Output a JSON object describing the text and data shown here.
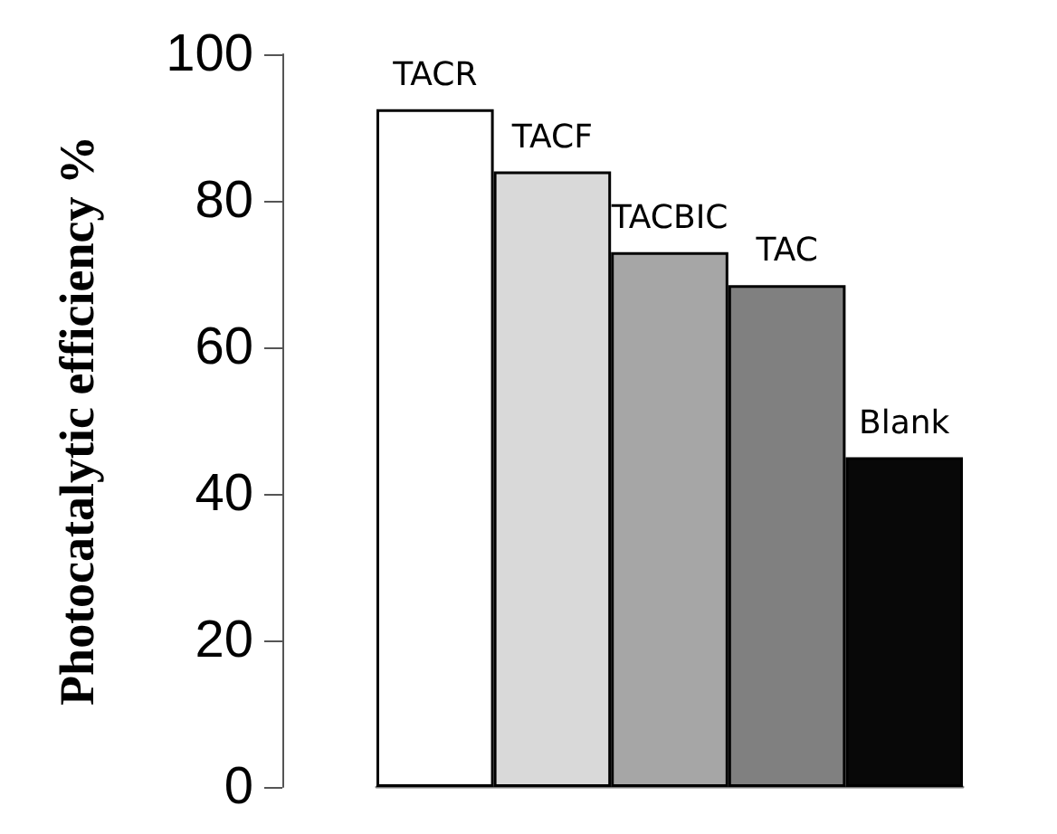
{
  "chart_data": {
    "type": "bar",
    "ylabel": "Photocatalytic efficiency %",
    "categories": [
      "TACR",
      "TACF",
      "TACBIC",
      "TAC",
      "Blank"
    ],
    "values": [
      92.5,
      84,
      73,
      68.5,
      45
    ],
    "colors": [
      "#ffffff",
      "#d9d9d9",
      "#a6a6a6",
      "#808080",
      "#080808"
    ],
    "ylim": [
      0,
      100
    ],
    "yticks": [
      0,
      20,
      40,
      60,
      80,
      100
    ],
    "grid": false
  }
}
